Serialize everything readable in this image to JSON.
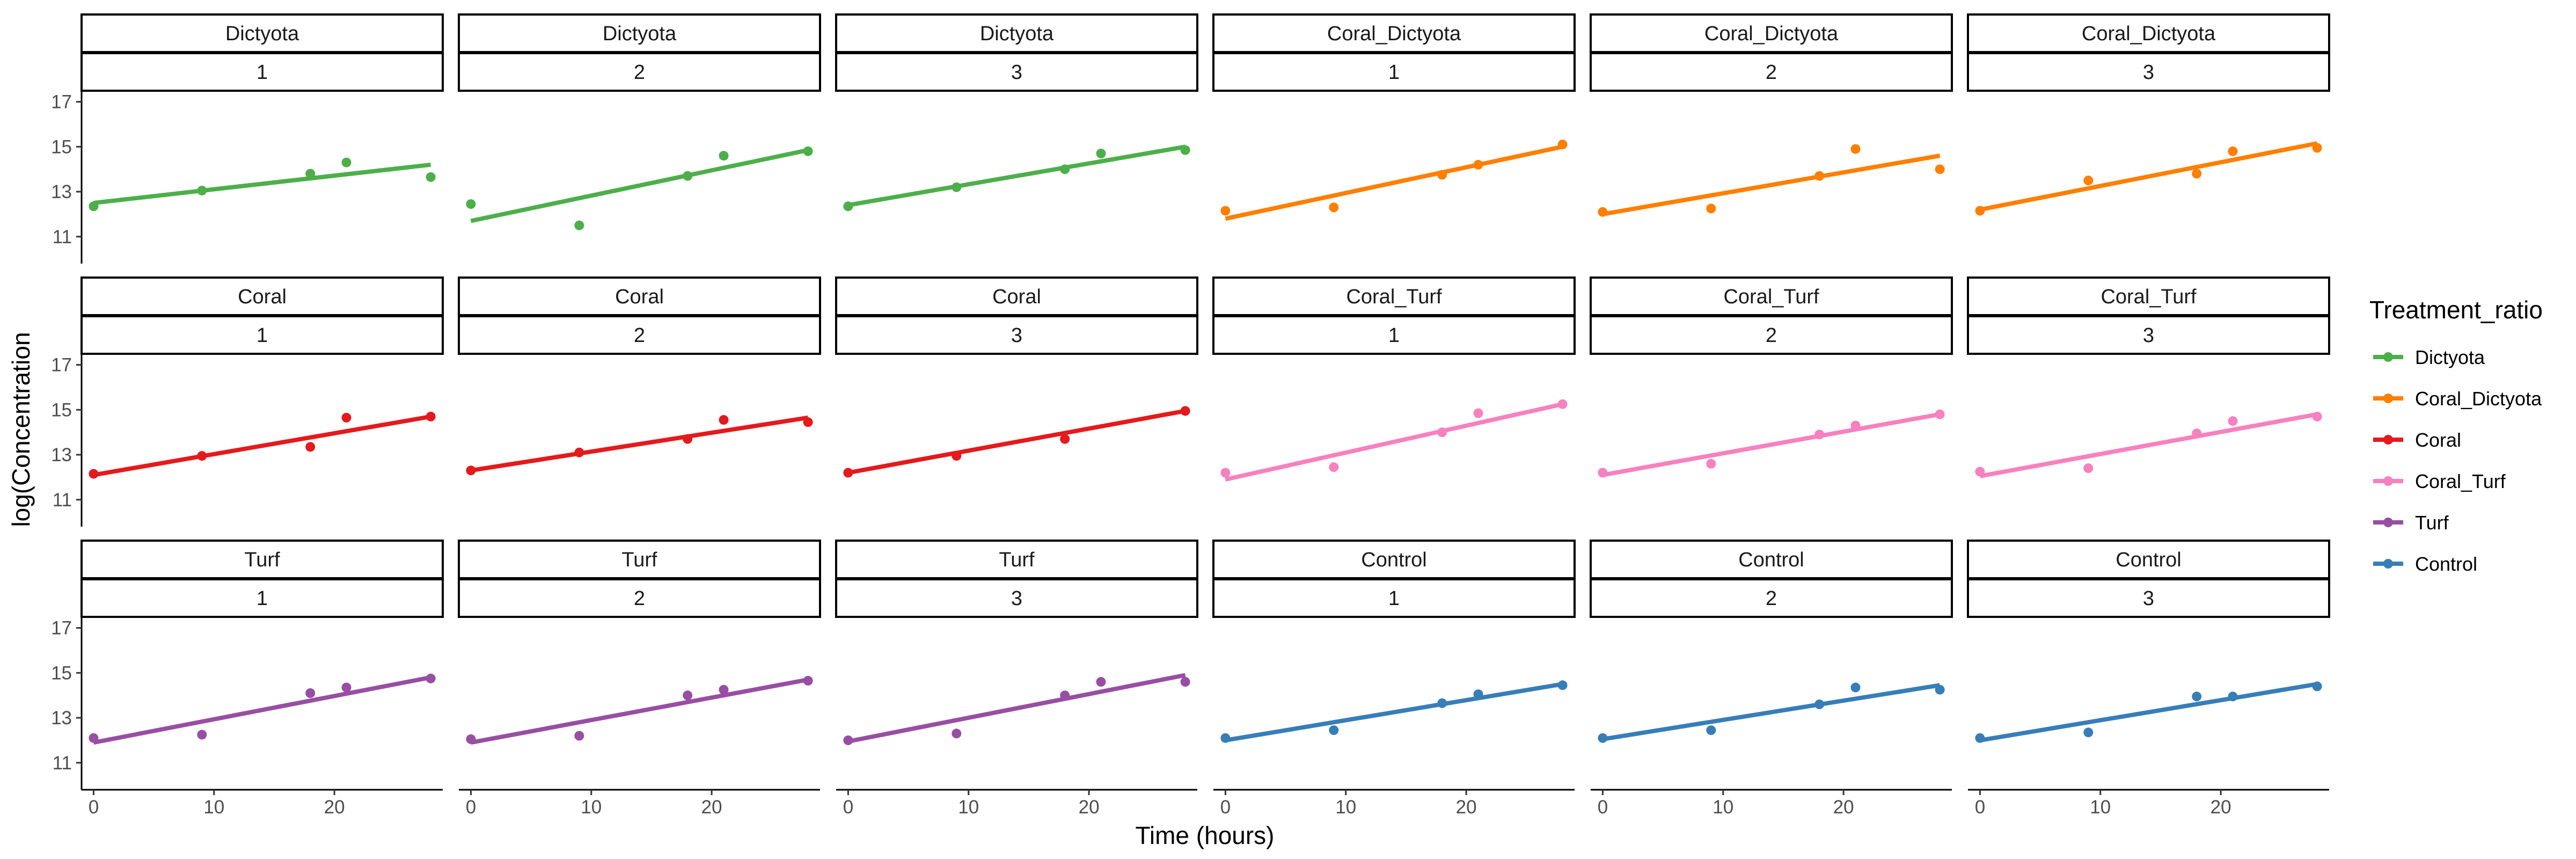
{
  "chart_data": {
    "type": "scatter",
    "facet_rows": 3,
    "facet_cols": 6,
    "xlabel": "Time (hours)",
    "ylabel": "log(Concentration",
    "x_ticks": [
      0,
      10,
      20
    ],
    "y_ticks": [
      11,
      13,
      15,
      17
    ],
    "xlim": [
      -1,
      29
    ],
    "ylim": [
      9.8,
      17.3
    ],
    "legend": {
      "title": "Treatment_ratio",
      "position": "right",
      "items": [
        {
          "label": "Dictyota",
          "color": "#4daf4a"
        },
        {
          "label": "Coral_Dictyota",
          "color": "#ff7f00"
        },
        {
          "label": "Coral",
          "color": "#e41a1c"
        },
        {
          "label": "Coral_Turf",
          "color": "#f781bf"
        },
        {
          "label": "Turf",
          "color": "#984ea3"
        },
        {
          "label": "Control",
          "color": "#377eb8"
        }
      ]
    },
    "panels": [
      {
        "treatment": "Dictyota",
        "replicate": "1",
        "color": "#4daf4a",
        "x": [
          0,
          9,
          18,
          21,
          28
        ],
        "y": [
          12.35,
          13.05,
          13.8,
          14.3,
          13.65
        ],
        "fit": [
          [
            0,
            12.5
          ],
          [
            28,
            14.2
          ]
        ]
      },
      {
        "treatment": "Dictyota",
        "replicate": "2",
        "color": "#4daf4a",
        "x": [
          0,
          9,
          18,
          21,
          28
        ],
        "y": [
          12.45,
          11.5,
          13.7,
          14.6,
          14.8
        ],
        "fit": [
          [
            0,
            11.7
          ],
          [
            28,
            14.85
          ]
        ]
      },
      {
        "treatment": "Dictyota",
        "replicate": "3",
        "color": "#4daf4a",
        "x": [
          0,
          9,
          18,
          21,
          28
        ],
        "y": [
          12.35,
          13.2,
          14.0,
          14.7,
          14.85
        ],
        "fit": [
          [
            0,
            12.4
          ],
          [
            28,
            15.0
          ]
        ]
      },
      {
        "treatment": "Coral_Dictyota",
        "replicate": "1",
        "color": "#ff7f00",
        "x": [
          0,
          9,
          18,
          21,
          28
        ],
        "y": [
          12.15,
          12.3,
          13.75,
          14.2,
          15.1
        ],
        "fit": [
          [
            0,
            11.8
          ],
          [
            28,
            15.0
          ]
        ]
      },
      {
        "treatment": "Coral_Dictyota",
        "replicate": "2",
        "color": "#ff7f00",
        "x": [
          0,
          9,
          18,
          21,
          28
        ],
        "y": [
          12.1,
          12.25,
          13.7,
          14.9,
          14.0
        ],
        "fit": [
          [
            0,
            12.0
          ],
          [
            28,
            14.6
          ]
        ]
      },
      {
        "treatment": "Coral_Dictyota",
        "replicate": "3",
        "color": "#ff7f00",
        "x": [
          0,
          9,
          18,
          21,
          28
        ],
        "y": [
          12.15,
          13.5,
          13.8,
          14.8,
          14.95
        ],
        "fit": [
          [
            0,
            12.2
          ],
          [
            28,
            15.15
          ]
        ]
      },
      {
        "treatment": "Coral",
        "replicate": "1",
        "color": "#e41a1c",
        "x": [
          0,
          9,
          18,
          21,
          28
        ],
        "y": [
          12.15,
          12.95,
          13.35,
          14.65,
          14.7
        ],
        "fit": [
          [
            0,
            12.1
          ],
          [
            28,
            14.7
          ]
        ]
      },
      {
        "treatment": "Coral",
        "replicate": "2",
        "color": "#e41a1c",
        "x": [
          0,
          9,
          18,
          21,
          28
        ],
        "y": [
          12.3,
          13.1,
          13.7,
          14.55,
          14.45
        ],
        "fit": [
          [
            0,
            12.3
          ],
          [
            28,
            14.65
          ]
        ]
      },
      {
        "treatment": "Coral",
        "replicate": "3",
        "color": "#e41a1c",
        "x": [
          0,
          9,
          18,
          28
        ],
        "y": [
          12.2,
          12.95,
          13.7,
          14.95
        ],
        "fit": [
          [
            0,
            12.2
          ],
          [
            28,
            14.95
          ]
        ]
      },
      {
        "treatment": "Coral_Turf",
        "replicate": "1",
        "color": "#f781bf",
        "x": [
          0,
          9,
          18,
          21,
          28
        ],
        "y": [
          12.2,
          12.45,
          14.0,
          14.85,
          15.25
        ],
        "fit": [
          [
            0,
            11.9
          ],
          [
            28,
            15.25
          ]
        ]
      },
      {
        "treatment": "Coral_Turf",
        "replicate": "2",
        "color": "#f781bf",
        "x": [
          0,
          9,
          18,
          21,
          28
        ],
        "y": [
          12.2,
          12.6,
          13.9,
          14.3,
          14.8
        ],
        "fit": [
          [
            0,
            12.1
          ],
          [
            28,
            14.8
          ]
        ]
      },
      {
        "treatment": "Coral_Turf",
        "replicate": "3",
        "color": "#f781bf",
        "x": [
          0,
          9,
          18,
          21,
          28
        ],
        "y": [
          12.25,
          12.4,
          13.95,
          14.5,
          14.7
        ],
        "fit": [
          [
            0,
            12.05
          ],
          [
            28,
            14.8
          ]
        ]
      },
      {
        "treatment": "Turf",
        "replicate": "1",
        "color": "#984ea3",
        "x": [
          0,
          9,
          18,
          21,
          28
        ],
        "y": [
          12.1,
          12.25,
          14.1,
          14.35,
          14.75
        ],
        "fit": [
          [
            0,
            11.9
          ],
          [
            28,
            14.8
          ]
        ]
      },
      {
        "treatment": "Turf",
        "replicate": "2",
        "color": "#984ea3",
        "x": [
          0,
          9,
          18,
          21,
          28
        ],
        "y": [
          12.05,
          12.2,
          14.0,
          14.25,
          14.65
        ],
        "fit": [
          [
            0,
            11.9
          ],
          [
            28,
            14.7
          ]
        ]
      },
      {
        "treatment": "Turf",
        "replicate": "3",
        "color": "#984ea3",
        "x": [
          0,
          9,
          18,
          21,
          28
        ],
        "y": [
          12.0,
          12.3,
          14.0,
          14.6,
          14.6
        ],
        "fit": [
          [
            0,
            11.95
          ],
          [
            28,
            14.9
          ]
        ]
      },
      {
        "treatment": "Control",
        "replicate": "1",
        "color": "#377eb8",
        "x": [
          0,
          9,
          18,
          21,
          28
        ],
        "y": [
          12.1,
          12.45,
          13.65,
          14.05,
          14.45
        ],
        "fit": [
          [
            0,
            12.0
          ],
          [
            28,
            14.5
          ]
        ]
      },
      {
        "treatment": "Control",
        "replicate": "2",
        "color": "#377eb8",
        "x": [
          0,
          9,
          18,
          21,
          28
        ],
        "y": [
          12.1,
          12.45,
          13.6,
          14.35,
          14.25
        ],
        "fit": [
          [
            0,
            12.05
          ],
          [
            28,
            14.45
          ]
        ]
      },
      {
        "treatment": "Control",
        "replicate": "3",
        "color": "#377eb8",
        "x": [
          0,
          9,
          18,
          21,
          28
        ],
        "y": [
          12.1,
          12.35,
          13.95,
          13.95,
          14.4
        ],
        "fit": [
          [
            0,
            12.0
          ],
          [
            28,
            14.5
          ]
        ]
      }
    ]
  }
}
